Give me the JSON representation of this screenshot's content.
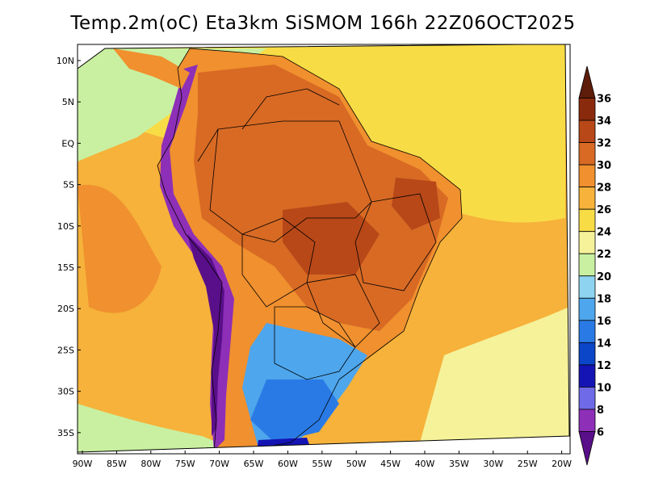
{
  "title": "Temp.2m(oC) Eta3km SiSMOM 166h 22Z06OCT2025",
  "latitude_labels": [
    "10N",
    "5N",
    "EQ",
    "5S",
    "10S",
    "15S",
    "20S",
    "25S",
    "30S",
    "35S"
  ],
  "longitude_labels": [
    "90W",
    "85W",
    "80W",
    "75W",
    "70W",
    "65W",
    "60W",
    "55W",
    "50W",
    "45W",
    "40W",
    "35W",
    "30W",
    "25W",
    "20W"
  ],
  "colorbar": {
    "levels": [
      "6",
      "8",
      "10",
      "12",
      "14",
      "16",
      "18",
      "20",
      "22",
      "24",
      "26",
      "28",
      "30",
      "32",
      "34",
      "36"
    ],
    "colors": [
      "#5a0f8a",
      "#8e2fb8",
      "#6f6ae8",
      "#1414b4",
      "#0c46c8",
      "#2a7ae6",
      "#4ea6ec",
      "#8ed4f0",
      "#c9f0a0",
      "#f5f29a",
      "#f8dc46",
      "#f6b23a",
      "#f0902e",
      "#d86a24",
      "#b84818",
      "#8a2a0c",
      "#5e1c0a"
    ]
  },
  "colors": {
    "ocean_north": "#f8dc46",
    "ocean_mid": "#f6b23a",
    "ocean_south": "#f5f29a",
    "land_hot": "#d86a24",
    "land_warm": "#f0902e",
    "andes": "#8e2fb8",
    "south_cool": "#4ea6ec"
  }
}
